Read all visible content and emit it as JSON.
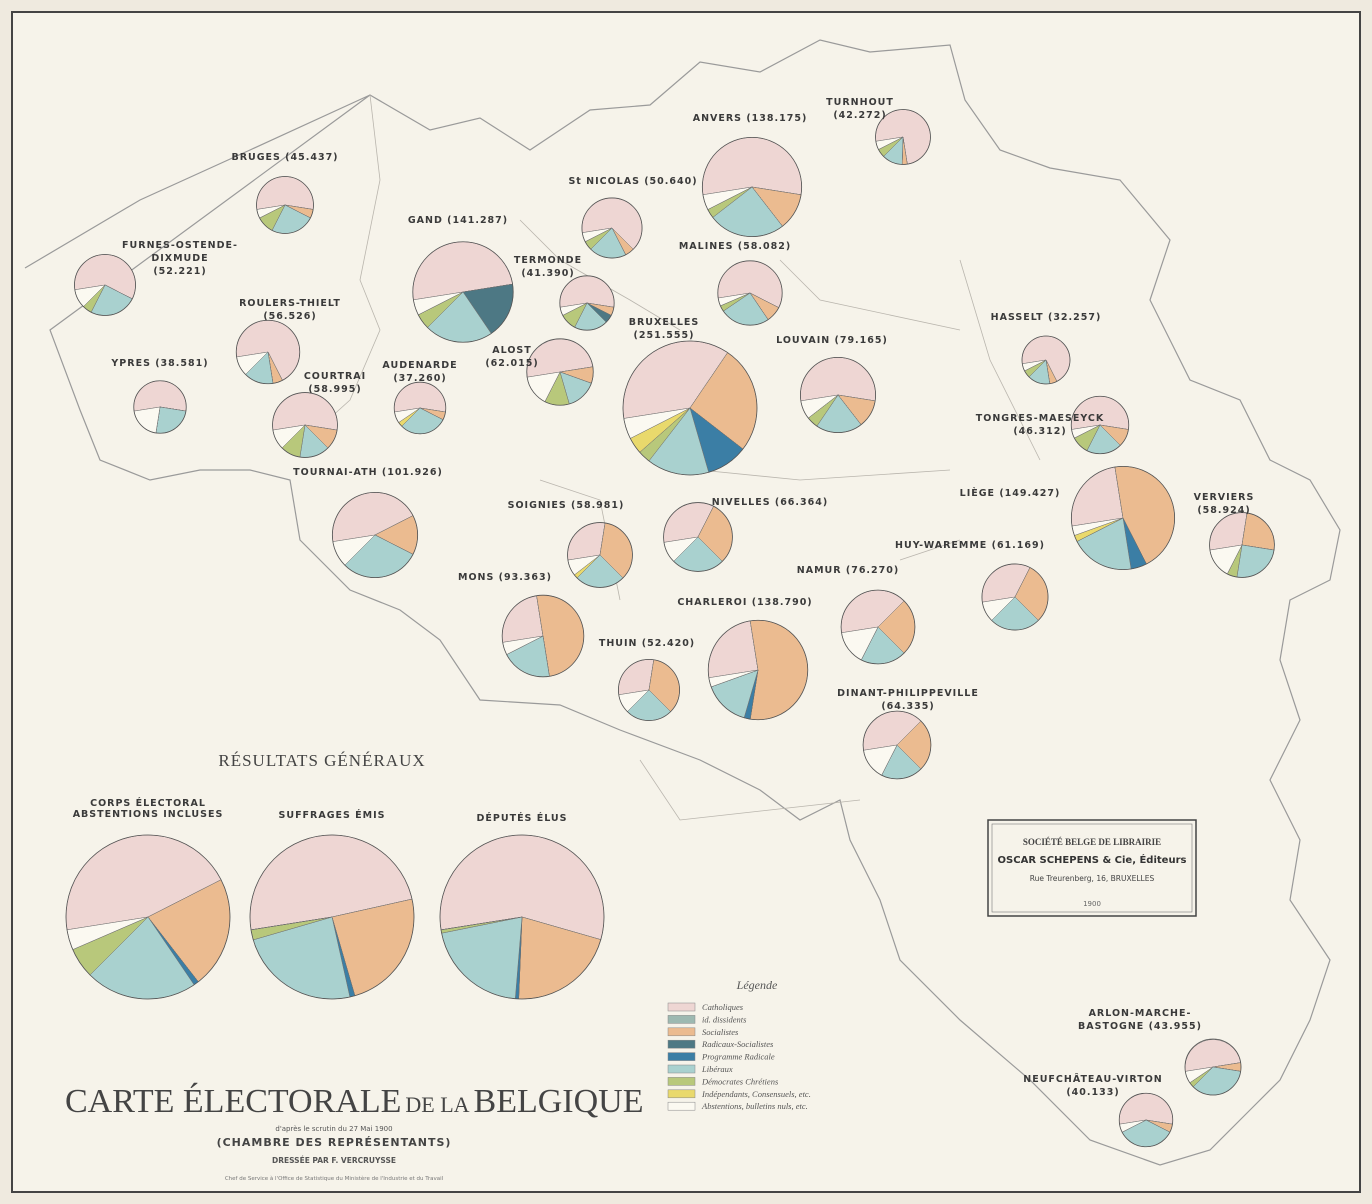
{
  "map": {
    "legend": {
      "title": "Légende",
      "categories": [
        {
          "name": "Catholiques",
          "color": "#eed6d3"
        },
        {
          "name": "id. dissidents",
          "color": "#9db9b1"
        },
        {
          "name": "Socialistes",
          "color": "#ebbb90"
        },
        {
          "name": "Radicaux-Socialistes",
          "color": "#4d7884"
        },
        {
          "name": "Programme Radicale",
          "color": "#3b7ea5"
        },
        {
          "name": "Libéraux",
          "color": "#a9d1cf"
        },
        {
          "name": "Démocrates Chrétiens",
          "color": "#b8c87b"
        },
        {
          "name": "Indépendants, Consensuels, etc.",
          "color": "#e9d96c"
        },
        {
          "name": "Abstentions, bulletins nuls, etc.",
          "color": "#fbf9f1"
        }
      ]
    },
    "districts": [
      {
        "label": [
          "FURNES-OSTENDE-",
          "DIXMUDE",
          "(52.221)"
        ],
        "total": 52221,
        "shares": [
          60,
          0,
          0,
          0,
          0,
          25,
          5,
          0,
          10
        ]
      },
      {
        "label": [
          "BRUGES (45.437)"
        ],
        "total": 45437,
        "shares": [
          55,
          0,
          5,
          0,
          0,
          25,
          10,
          0,
          5
        ]
      },
      {
        "label": [
          "YPRES (38.581)"
        ],
        "total": 38581,
        "shares": [
          55,
          0,
          0,
          0,
          0,
          25,
          0,
          0,
          20
        ]
      },
      {
        "label": [
          "ROULERS-THIELT",
          "(56.526)"
        ],
        "total": 56526,
        "shares": [
          70,
          0,
          5,
          0,
          0,
          15,
          0,
          0,
          10
        ]
      },
      {
        "label": [
          "COURTRAI",
          "(58.995)"
        ],
        "total": 58995,
        "shares": [
          55,
          0,
          10,
          0,
          0,
          15,
          10,
          0,
          10
        ]
      },
      {
        "label": [
          "GAND (141.287)"
        ],
        "total": 141287,
        "shares": [
          50,
          0,
          0,
          18,
          0,
          22,
          5,
          0,
          5
        ]
      },
      {
        "label": [
          "AUDENARDE",
          "(37.260)"
        ],
        "total": 37260,
        "shares": [
          55,
          0,
          5,
          0,
          0,
          30,
          0,
          3,
          7
        ]
      },
      {
        "label": [
          "TOURNAI-ATH (101.926)"
        ],
        "total": 101926,
        "shares": [
          45,
          0,
          15,
          0,
          0,
          30,
          0,
          0,
          10
        ]
      },
      {
        "label": [
          "TERMONDE",
          "(41.390)"
        ],
        "total": 41390,
        "shares": [
          55,
          0,
          5,
          5,
          0,
          20,
          10,
          0,
          5
        ]
      },
      {
        "label": [
          "St NICOLAS (50.640)"
        ],
        "total": 50640,
        "shares": [
          65,
          0,
          5,
          0,
          0,
          20,
          5,
          0,
          5
        ]
      },
      {
        "label": [
          "ANVERS (138.175)"
        ],
        "total": 138175,
        "shares": [
          55,
          0,
          12,
          0,
          0,
          25,
          3,
          0,
          5
        ]
      },
      {
        "label": [
          "TURNHOUT",
          "(42.272)"
        ],
        "total": 42272,
        "shares": [
          75,
          0,
          3,
          0,
          0,
          12,
          5,
          0,
          5
        ]
      },
      {
        "label": [
          "MALINES (58.082)"
        ],
        "total": 58082,
        "shares": [
          60,
          0,
          8,
          0,
          0,
          25,
          3,
          0,
          4
        ]
      },
      {
        "label": [
          "ALOST",
          "(62.015)"
        ],
        "total": 62015,
        "shares": [
          50,
          0,
          8,
          0,
          0,
          15,
          12,
          0,
          15
        ]
      },
      {
        "label": [
          "BRUXELLES",
          "(251.555)"
        ],
        "total": 251555,
        "shares": [
          37,
          0,
          26,
          0,
          10,
          15,
          3,
          4,
          5
        ]
      },
      {
        "label": [
          "LOUVAIN (79.165)"
        ],
        "total": 79165,
        "shares": [
          55,
          0,
          12,
          0,
          0,
          20,
          5,
          0,
          8
        ]
      },
      {
        "label": [
          "HASSELT (32.257)"
        ],
        "total": 32257,
        "shares": [
          70,
          0,
          5,
          0,
          0,
          15,
          5,
          0,
          5
        ]
      },
      {
        "label": [
          "TONGRES-MAESEYCK",
          "(46.312)"
        ],
        "total": 46312,
        "shares": [
          55,
          0,
          10,
          0,
          0,
          20,
          10,
          0,
          5
        ]
      },
      {
        "label": [
          "LIÈGE (149.427)"
        ],
        "total": 149427,
        "shares": [
          25,
          0,
          45,
          0,
          5,
          20,
          0,
          2,
          3
        ]
      },
      {
        "label": [
          "VERVIERS",
          "(58.924)"
        ],
        "total": 58924,
        "shares": [
          30,
          0,
          25,
          0,
          0,
          25,
          5,
          0,
          15
        ]
      },
      {
        "label": [
          "HUY-WAREMME (61.169)"
        ],
        "total": 61169,
        "shares": [
          35,
          0,
          30,
          0,
          0,
          25,
          0,
          0,
          10
        ]
      },
      {
        "label": [
          "NAMUR (76.270)"
        ],
        "total": 76270,
        "shares": [
          40,
          0,
          25,
          0,
          0,
          20,
          0,
          0,
          15
        ]
      },
      {
        "label": [
          "SOIGNIES (58.981)"
        ],
        "total": 58981,
        "shares": [
          30,
          0,
          35,
          0,
          0,
          25,
          0,
          2,
          8
        ]
      },
      {
        "label": [
          "NIVELLES (66.364)"
        ],
        "total": 66364,
        "shares": [
          35,
          0,
          30,
          0,
          0,
          25,
          0,
          0,
          10
        ]
      },
      {
        "label": [
          "MONS (93.363)"
        ],
        "total": 93363,
        "shares": [
          25,
          0,
          50,
          0,
          0,
          20,
          0,
          0,
          5
        ]
      },
      {
        "label": [
          "CHARLEROI (138.790)"
        ],
        "total": 138790,
        "shares": [
          25,
          0,
          55,
          0,
          2,
          15,
          0,
          0,
          3
        ]
      },
      {
        "label": [
          "THUIN (52.420)"
        ],
        "total": 52420,
        "shares": [
          30,
          0,
          35,
          0,
          0,
          25,
          0,
          0,
          10
        ]
      },
      {
        "label": [
          "DINANT-PHILIPPEVILLE",
          "(64.335)"
        ],
        "total": 64335,
        "shares": [
          40,
          0,
          25,
          0,
          0,
          20,
          0,
          0,
          15
        ]
      },
      {
        "label": [
          "ARLON-MARCHE-",
          "BASTOGNE (43.955)"
        ],
        "total": 43955,
        "shares": [
          50,
          0,
          5,
          0,
          0,
          35,
          3,
          0,
          7
        ]
      },
      {
        "label": [
          "NEUFCHÂTEAU-VIRTON",
          "(40.133)"
        ],
        "total": 40133,
        "shares": [
          55,
          0,
          5,
          0,
          0,
          35,
          0,
          0,
          5
        ]
      }
    ]
  },
  "general": {
    "title": "RÉSULTATS GÉNÉRAUX",
    "pies": [
      {
        "label": [
          "CORPS ÉLECTORAL",
          "ABSTENTIONS INCLUSES"
        ],
        "shares": [
          45,
          0,
          22,
          0,
          1,
          22,
          6,
          0,
          4
        ]
      },
      {
        "label": [
          "SUFFRAGES ÉMIS"
        ],
        "shares": [
          49,
          0,
          24,
          0,
          1,
          24,
          2,
          0,
          0
        ]
      },
      {
        "label": [
          "DÉPUTÉS ÉLUS"
        ],
        "shares": [
          86,
          0,
          32,
          0,
          1,
          31,
          1,
          0,
          0
        ]
      }
    ]
  },
  "title_block": {
    "title_parts": [
      "CARTE ÉLECTORALE",
      "DE LA",
      "BELGIQUE"
    ],
    "subtitle": "d'après le scrutin du 27 Mai 1900",
    "chamber": "(CHAMBRE DES REPRÉSENTANTS)",
    "author": "DRESSÉE PAR F. VERCRUYSSE",
    "credit": "Chef de Service à l'Office de Statistique du Ministère de l'Industrie et du Travail"
  },
  "publisher": {
    "society": "SOCIÉTÉ BELGE DE LIBRAIRIE",
    "name": "OSCAR SCHEPENS & Cie, Éditeurs",
    "address": "Rue Treurenberg, 16, BRUXELLES",
    "year": "1900"
  }
}
